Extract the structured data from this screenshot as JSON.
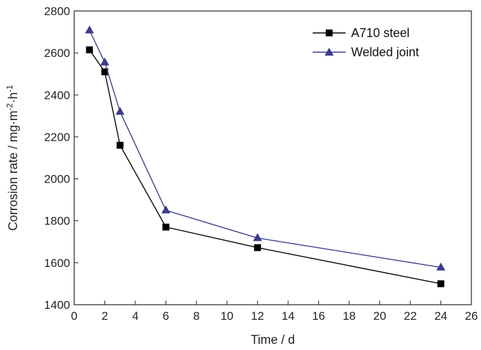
{
  "chart_data": {
    "type": "line",
    "title": "",
    "xlabel": "Time / d",
    "ylabel_parts": [
      "Corrosion rate / mg·m",
      "-2",
      "·h",
      "-1"
    ],
    "xlim": [
      0,
      26
    ],
    "ylim": [
      1400,
      2800
    ],
    "xticks": [
      0,
      2,
      4,
      6,
      8,
      10,
      12,
      14,
      16,
      18,
      20,
      22,
      24,
      26
    ],
    "yticks": [
      1400,
      1600,
      1800,
      2000,
      2200,
      2400,
      2600,
      2800
    ],
    "grid": false,
    "legend_position": "top-right",
    "series": [
      {
        "name": "A710 steel",
        "marker": "square",
        "color": "#000000",
        "x": [
          1,
          2,
          3,
          6,
          12,
          24
        ],
        "y": [
          2615,
          2510,
          2160,
          1770,
          1672,
          1500
        ]
      },
      {
        "name": "Welded joint",
        "marker": "triangle",
        "color": "#3c3c8c",
        "x": [
          1,
          2,
          3,
          6,
          12,
          24
        ],
        "y": [
          2708,
          2555,
          2320,
          1850,
          1718,
          1578
        ]
      }
    ]
  }
}
